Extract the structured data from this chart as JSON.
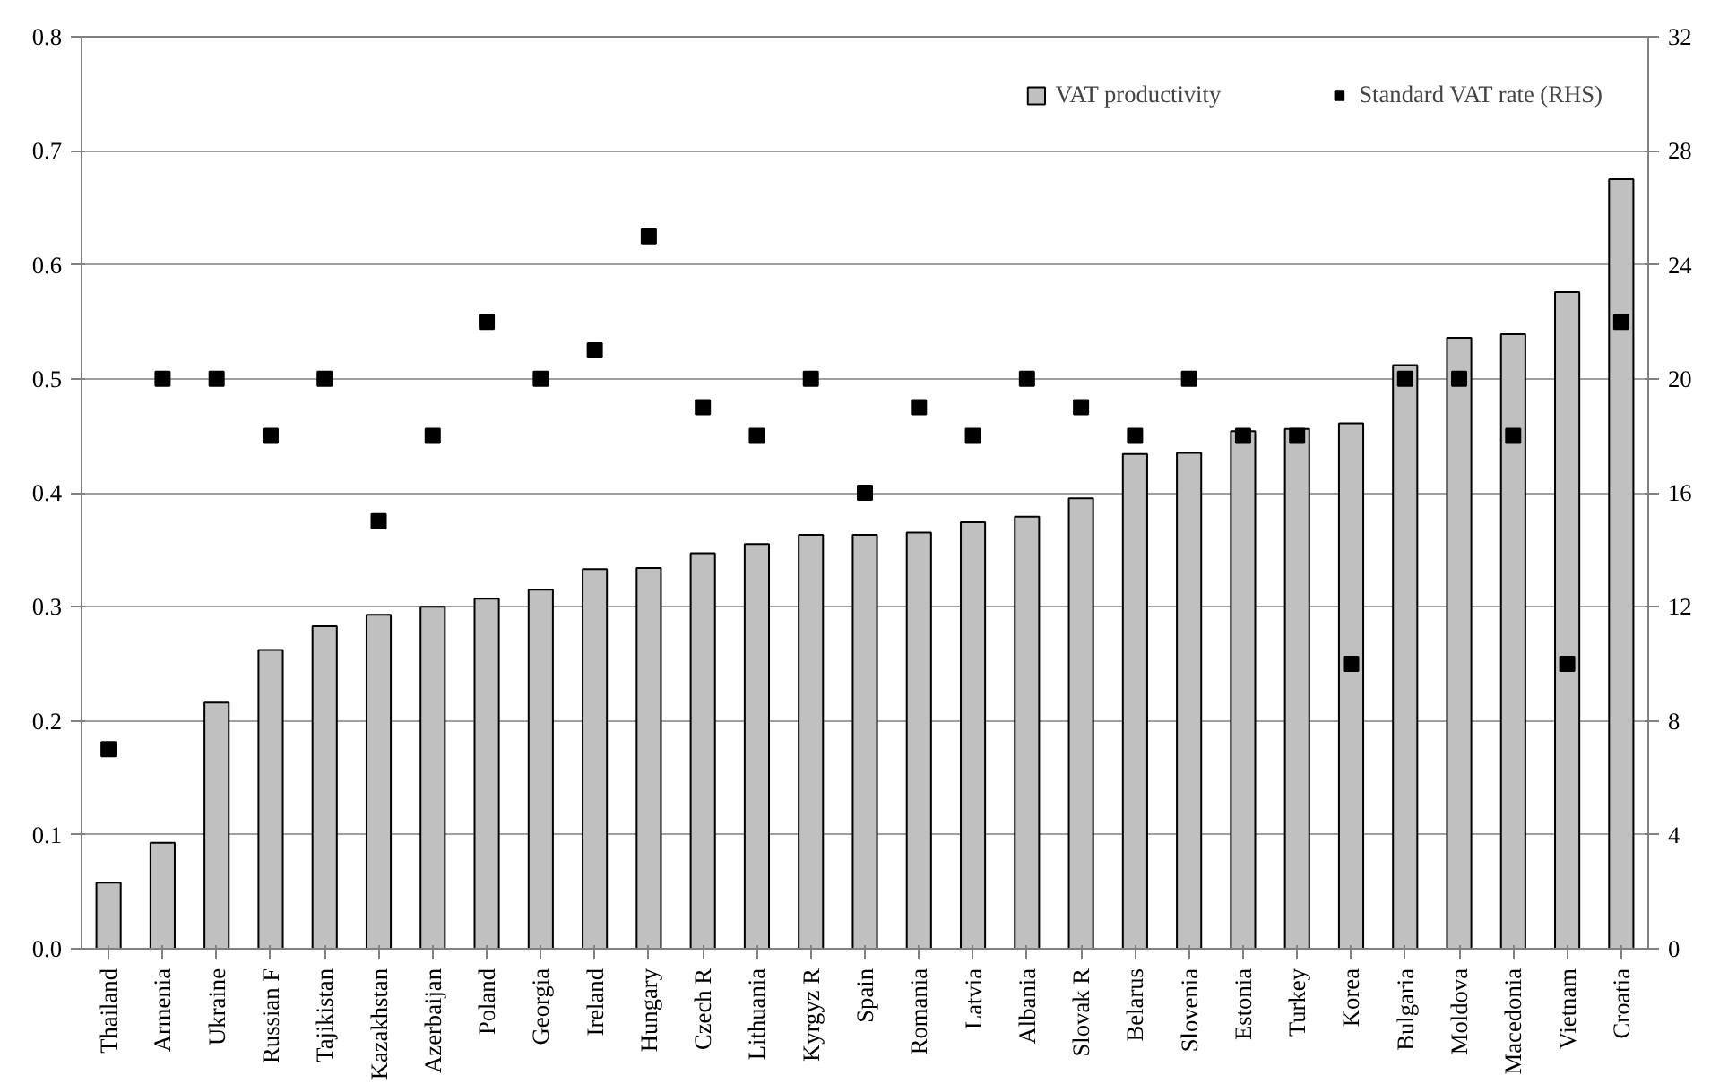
{
  "chart_data": {
    "type": "bar",
    "categories": [
      "Thailand",
      "Armenia",
      "Ukraine",
      "Russian F",
      "Tajikistan",
      "Kazakhstan",
      "Azerbaijan",
      "Poland",
      "Georgia",
      "Ireland",
      "Hungary",
      "Czech R",
      "Lithuania",
      "Kyrgyz R",
      "Spain",
      "Romania",
      "Latvia",
      "Albania",
      "Slovak R",
      "Belarus",
      "Slovenia",
      "Estonia",
      "Turkey",
      "Korea",
      "Bulgaria",
      "Moldova",
      "Macedonia",
      "Vietnam",
      "Croatia"
    ],
    "series": [
      {
        "name": "VAT productivity",
        "color": "#c0c0c0",
        "values": [
          0.058,
          0.093,
          0.216,
          0.262,
          0.283,
          0.293,
          0.3,
          0.307,
          0.315,
          0.333,
          0.334,
          0.347,
          0.355,
          0.363,
          0.363,
          0.365,
          0.374,
          0.379,
          0.395,
          0.434,
          0.435,
          0.454,
          0.456,
          0.461,
          0.512,
          0.536,
          0.539,
          0.576,
          0.675
        ]
      },
      {
        "name": "Standard VAT rate (RHS)",
        "type": "scatter",
        "axis": "y2",
        "marker": "square",
        "color": "#000000",
        "values": [
          7,
          20,
          20,
          18,
          20,
          15,
          18,
          22,
          20,
          21,
          25,
          19,
          18,
          20,
          16,
          19,
          18,
          20,
          19,
          18,
          20,
          18,
          18,
          10,
          20,
          20,
          18,
          10,
          22
        ]
      }
    ],
    "ylim": [
      0,
      0.8
    ],
    "yticks": [
      {
        "value": 0,
        "label": "0.0"
      },
      0.1,
      0.2,
      0.3,
      0.4,
      0.5,
      0.6,
      0.7,
      0.8
    ],
    "y2lim": [
      0,
      32
    ],
    "y2ticks": [
      0,
      4,
      8,
      12,
      16,
      20,
      24,
      28,
      32
    ],
    "grid": "y",
    "legend": "top right"
  }
}
